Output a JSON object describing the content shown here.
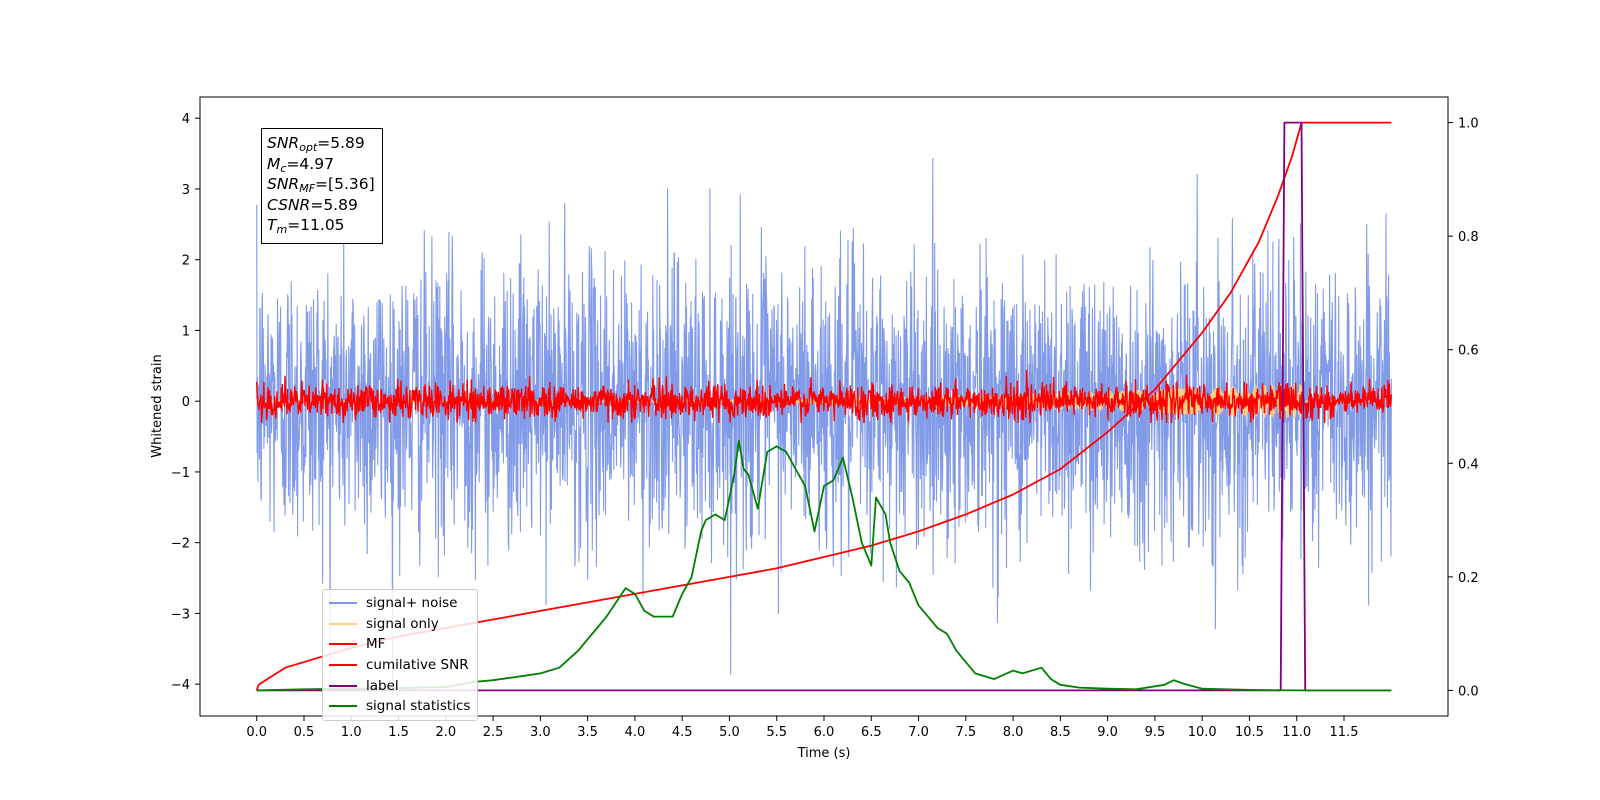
{
  "chart_data": {
    "type": "line",
    "xlabel": "Time (s)",
    "ylabel": "Whitened strain",
    "xlim": [
      -0.6,
      12.6
    ],
    "ylim": [
      -4.45,
      4.3
    ],
    "y2lim": [
      -0.045,
      1.045
    ],
    "x_ticks": [
      "0.0",
      "0.5",
      "1.0",
      "1.5",
      "2.0",
      "2.5",
      "3.0",
      "3.5",
      "4.0",
      "4.5",
      "5.0",
      "5.5",
      "6.0",
      "6.5",
      "7.0",
      "7.5",
      "8.0",
      "8.5",
      "9.0",
      "9.5",
      "10.0",
      "10.5",
      "11.0",
      "11.5"
    ],
    "y_ticks": [
      "4",
      "3",
      "2",
      "1",
      "0",
      "−1",
      "−2",
      "−3",
      "−4"
    ],
    "y2_ticks": [
      "1.0",
      "0.8",
      "0.6",
      "0.4",
      "0.2",
      "0.0"
    ],
    "grid": false,
    "legend_placement": "lower-left",
    "annotation": {
      "snr_opt": {
        "name": "SNR",
        "sub": "opt",
        "value": "=5.89"
      },
      "mc": {
        "name": "M",
        "sub": "c",
        "value": "=4.97"
      },
      "snr_mf": {
        "name": "SNR",
        "sub": "MF",
        "value": "=[5.36]"
      },
      "csnr": {
        "name": "CSNR",
        "value": "=5.89"
      },
      "tm": {
        "name": "T",
        "sub": "m",
        "value": "=11.05"
      }
    },
    "series": [
      {
        "name": "signal+ noise",
        "color": "#7b96e8",
        "axis": "left",
        "style": "noise",
        "t_range": [
          0,
          12
        ],
        "mean": 0.0,
        "std": 1.0,
        "min": -4.15,
        "max": 3.75
      },
      {
        "name": "signal only",
        "color": "#ffd27f",
        "axis": "left",
        "style": "chirp",
        "t_range": [
          0,
          12
        ],
        "amplitude_max": 0.25
      },
      {
        "name": "MF",
        "color": "#ff0000",
        "axis": "left",
        "style": "noise",
        "t_range": [
          0,
          12
        ],
        "mean": 0.0,
        "std": 0.12,
        "min": -0.3,
        "max": 0.75
      },
      {
        "name": "cumilative SNR",
        "color": "#ff0000",
        "axis": "right",
        "x": [
          0,
          0.02,
          0.3,
          0.6,
          1,
          1.5,
          2,
          2.5,
          3,
          3.5,
          4,
          4.5,
          5,
          5.5,
          6,
          6.5,
          7,
          7.5,
          8,
          8.5,
          9,
          9.5,
          10,
          10.3,
          10.6,
          10.8,
          10.95,
          11.05,
          12
        ],
        "values": [
          0.0,
          0.01,
          0.04,
          0.055,
          0.075,
          0.095,
          0.11,
          0.125,
          0.14,
          0.155,
          0.17,
          0.185,
          0.2,
          0.215,
          0.235,
          0.255,
          0.28,
          0.31,
          0.345,
          0.39,
          0.455,
          0.53,
          0.63,
          0.7,
          0.79,
          0.87,
          0.94,
          1.0,
          1.0
        ]
      },
      {
        "name": "label",
        "color": "#800080",
        "axis": "right",
        "x": [
          0,
          10.83,
          10.87,
          11.05,
          11.09,
          12
        ],
        "values": [
          0,
          0,
          1,
          1,
          0,
          0
        ]
      },
      {
        "name": "signal statistics",
        "color": "#008000",
        "axis": "right",
        "x": [
          0,
          0.5,
          1,
          1.5,
          2,
          2.3,
          2.5,
          2.8,
          3.0,
          3.2,
          3.4,
          3.5,
          3.6,
          3.7,
          3.8,
          3.9,
          4.0,
          4.1,
          4.2,
          4.4,
          4.5,
          4.6,
          4.7,
          4.75,
          4.85,
          4.95,
          5.0,
          5.05,
          5.1,
          5.15,
          5.2,
          5.3,
          5.35,
          5.4,
          5.5,
          5.6,
          5.7,
          5.8,
          5.9,
          6.0,
          6.1,
          6.2,
          6.3,
          6.4,
          6.5,
          6.55,
          6.65,
          6.7,
          6.8,
          6.9,
          7.0,
          7.1,
          7.2,
          7.3,
          7.4,
          7.5,
          7.6,
          7.8,
          8.0,
          8.1,
          8.3,
          8.4,
          8.5,
          8.7,
          9.0,
          9.3,
          9.6,
          9.7,
          9.8,
          10.0,
          10.5,
          11.0,
          12.0
        ],
        "values": [
          0,
          0.002,
          0.003,
          0.004,
          0.006,
          0.015,
          0.018,
          0.025,
          0.03,
          0.04,
          0.07,
          0.09,
          0.11,
          0.13,
          0.155,
          0.18,
          0.17,
          0.14,
          0.13,
          0.13,
          0.17,
          0.2,
          0.28,
          0.3,
          0.31,
          0.3,
          0.34,
          0.38,
          0.44,
          0.39,
          0.38,
          0.32,
          0.37,
          0.42,
          0.43,
          0.42,
          0.39,
          0.36,
          0.28,
          0.36,
          0.37,
          0.41,
          0.34,
          0.26,
          0.22,
          0.34,
          0.31,
          0.26,
          0.21,
          0.19,
          0.15,
          0.13,
          0.11,
          0.1,
          0.07,
          0.05,
          0.03,
          0.02,
          0.035,
          0.03,
          0.04,
          0.02,
          0.01,
          0.005,
          0.003,
          0.002,
          0.01,
          0.018,
          0.012,
          0.003,
          0.001,
          0.0,
          0.0
        ]
      }
    ]
  }
}
